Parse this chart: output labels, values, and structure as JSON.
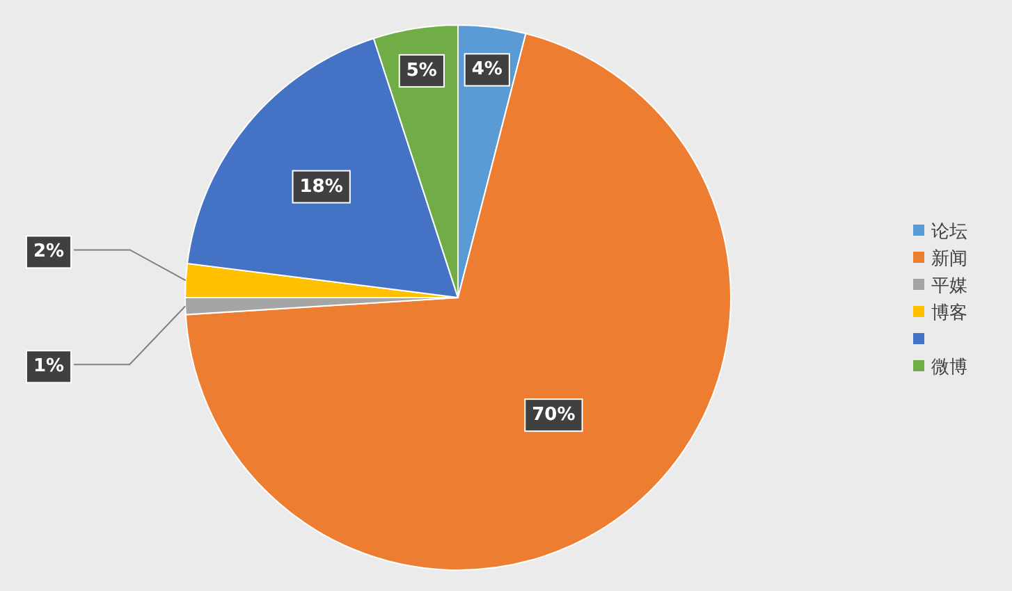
{
  "chart_data": {
    "type": "pie",
    "categories": [
      "论坛",
      "新闻",
      "平媒",
      "博客",
      null,
      "微博"
    ],
    "values": [
      4,
      70,
      1,
      2,
      18,
      5
    ],
    "colors": [
      "#5b9bd5",
      "#ed7d31",
      "#a5a5a5",
      "#ffc000",
      "#4472c4",
      "#70ad47"
    ],
    "value_labels": [
      "4%",
      "70%",
      "1%",
      "2%",
      "18%",
      "5%"
    ],
    "legend": "right"
  }
}
